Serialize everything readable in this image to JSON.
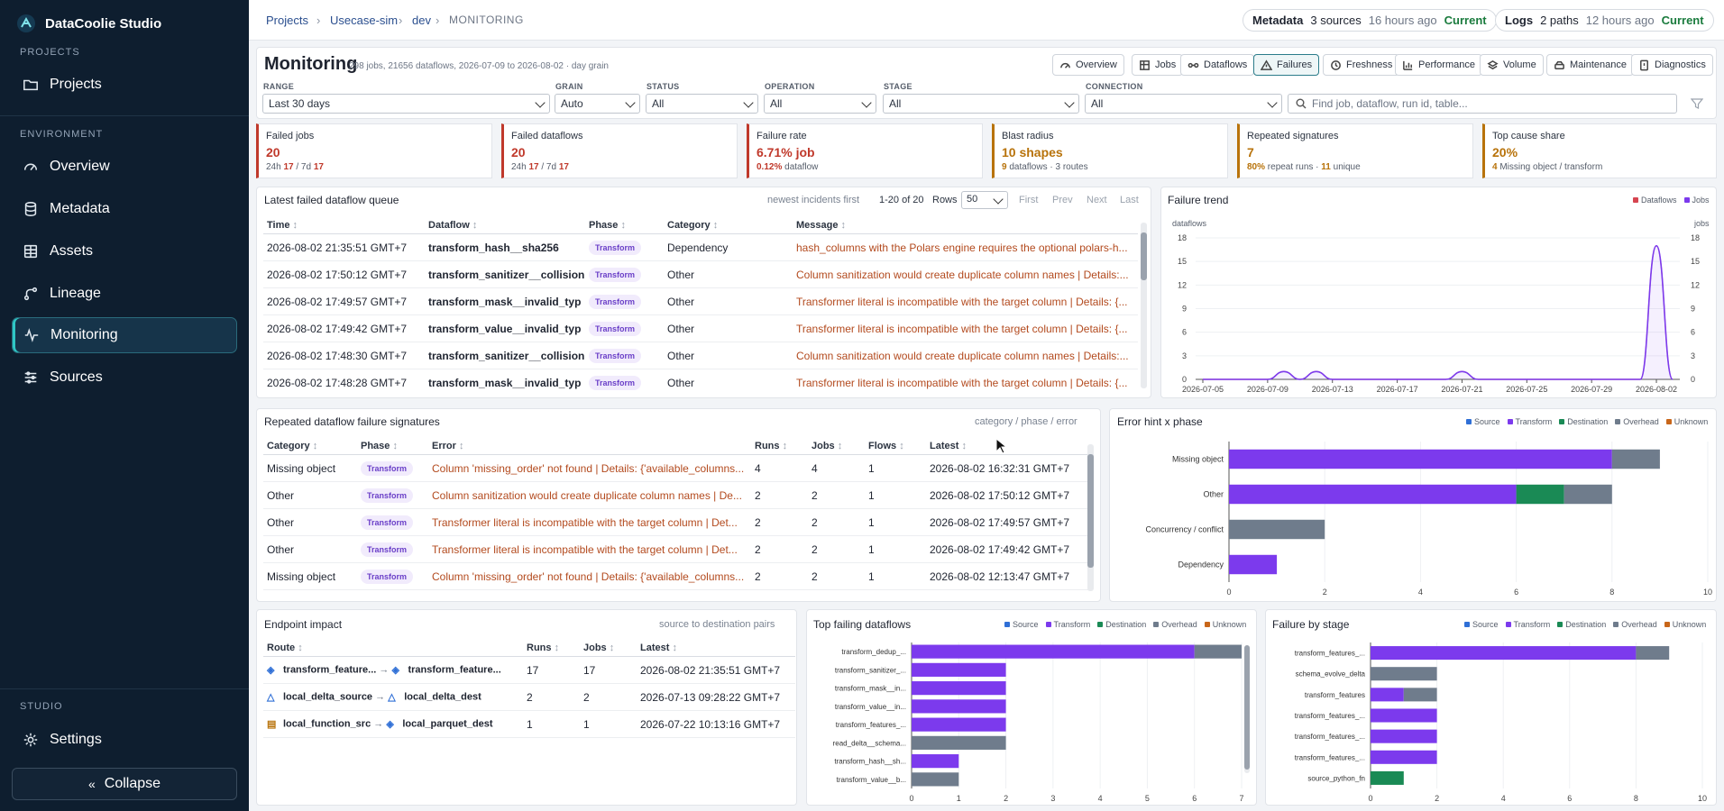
{
  "app": {
    "name": "DataCoolie Studio"
  },
  "sidebar": {
    "projects_label": "PROJECTS",
    "environment_label": "ENVIRONMENT",
    "studio_label": "STUDIO",
    "items": [
      {
        "label": "Projects"
      },
      {
        "label": "Overview"
      },
      {
        "label": "Metadata"
      },
      {
        "label": "Assets"
      },
      {
        "label": "Lineage"
      },
      {
        "label": "Monitoring"
      },
      {
        "label": "Sources"
      },
      {
        "label": "Settings"
      }
    ],
    "collapse_label": "Collapse"
  },
  "breadcrumb": {
    "projects": "Projects",
    "project": "Usecase-sim",
    "env": "dev",
    "current": "MONITORING"
  },
  "status": {
    "metadata": {
      "label": "Metadata",
      "detail": "3 sources",
      "time": "16 hours ago",
      "state": "Current"
    },
    "logs": {
      "label": "Logs",
      "detail": "2 paths",
      "time": "12 hours ago",
      "state": "Current"
    }
  },
  "header": {
    "title": "Monitoring",
    "subtitle": "298 jobs, 21656 dataflows, 2026-07-09 to 2026-08-02 · day grain"
  },
  "tabs": [
    "Overview",
    "Jobs",
    "Dataflows",
    "Failures",
    "Freshness",
    "Performance",
    "Volume",
    "Maintenance",
    "Diagnostics"
  ],
  "filters": {
    "range": {
      "label": "RANGE",
      "value": "Last 30 days"
    },
    "grain": {
      "label": "GRAIN",
      "value": "Auto"
    },
    "status": {
      "label": "STATUS",
      "value": "All"
    },
    "operation": {
      "label": "OPERATION",
      "value": "All"
    },
    "stage": {
      "label": "STAGE",
      "value": "All"
    },
    "connection": {
      "label": "CONNECTION",
      "value": "All"
    },
    "search_placeholder": "Find job, dataflow, run id, table..."
  },
  "kpis": [
    {
      "title": "Failed jobs",
      "value": "20",
      "a": "24h",
      "a_val": "17",
      "b": "/ 7d",
      "b_val": "17",
      "color": "#c0392b"
    },
    {
      "title": "Failed dataflows",
      "value": "20",
      "a": "24h",
      "a_val": "17",
      "b": "/ 7d",
      "b_val": "17",
      "color": "#c0392b"
    },
    {
      "title": "Failure rate",
      "value": "6.71% job",
      "a": "0.12%",
      "a_val": "",
      "b": "dataflow",
      "b_val": "",
      "color": "#c0392b"
    },
    {
      "title": "Blast radius",
      "value": "10 shapes",
      "a": "9",
      "a_val": "dataflows",
      "b": "· 3",
      "b_val": "routes",
      "color": "#b8730b"
    },
    {
      "title": "Repeated signatures",
      "value": "7",
      "a": "80%",
      "a_val": "repeat runs ·",
      "b": "11",
      "b_val": "unique",
      "color": "#b8730b"
    },
    {
      "title": "Top cause share",
      "value": "20%",
      "a": "4",
      "a_val": "Missing object / transform",
      "b": "",
      "b_val": "",
      "color": "#b8730b"
    }
  ],
  "queue": {
    "title": "Latest failed dataflow queue",
    "hint": "newest incidents first",
    "range": "1-20 of 20",
    "rows_label": "Rows",
    "rows_value": "50",
    "pager": [
      "First",
      "Prev",
      "Next",
      "Last"
    ],
    "columns": [
      "Time",
      "Dataflow",
      "Phase",
      "Category",
      "Message"
    ],
    "rows": [
      [
        "2026-08-02 21:35:51 GMT+7",
        "transform_hash__sha256",
        "Transform",
        "Dependency",
        "hash_columns with the Polars engine requires the optional polars-h..."
      ],
      [
        "2026-08-02 17:50:12 GMT+7",
        "transform_sanitizer__collision",
        "Transform",
        "Other",
        "Column sanitization would create duplicate column names | Details:..."
      ],
      [
        "2026-08-02 17:49:57 GMT+7",
        "transform_mask__invalid_typ",
        "Transform",
        "Other",
        "Transformer literal is incompatible with the target column | Details: {..."
      ],
      [
        "2026-08-02 17:49:42 GMT+7",
        "transform_value__invalid_typ",
        "Transform",
        "Other",
        "Transformer literal is incompatible with the target column | Details: {..."
      ],
      [
        "2026-08-02 17:48:30 GMT+7",
        "transform_sanitizer__collision",
        "Transform",
        "Other",
        "Column sanitization would create duplicate column names | Details:..."
      ],
      [
        "2026-08-02 17:48:28 GMT+7",
        "transform_mask__invalid_typ",
        "Transform",
        "Other",
        "Transformer literal is incompatible with the target column | Details: {..."
      ]
    ]
  },
  "signatures": {
    "title": "Repeated dataflow failure signatures",
    "hint": "category / phase / error",
    "columns": [
      "Category",
      "Phase",
      "Error",
      "Runs",
      "Jobs",
      "Flows",
      "Latest"
    ],
    "rows": [
      [
        "Missing object",
        "Transform",
        "Column 'missing_order' not found | Details: {'available_columns...",
        "4",
        "4",
        "1",
        "2026-08-02 16:32:31 GMT+7"
      ],
      [
        "Other",
        "Transform",
        "Column sanitization would create duplicate column names | De...",
        "2",
        "2",
        "1",
        "2026-08-02 17:50:12 GMT+7"
      ],
      [
        "Other",
        "Transform",
        "Transformer literal is incompatible with the target column | Det...",
        "2",
        "2",
        "1",
        "2026-08-02 17:49:57 GMT+7"
      ],
      [
        "Other",
        "Transform",
        "Transformer literal is incompatible with the target column | Det...",
        "2",
        "2",
        "1",
        "2026-08-02 17:49:42 GMT+7"
      ],
      [
        "Missing object",
        "Transform",
        "Column 'missing_order' not found | Details: {'available_columns...",
        "2",
        "2",
        "1",
        "2026-08-02 12:13:47 GMT+7"
      ]
    ]
  },
  "endpoint": {
    "title": "Endpoint impact",
    "hint": "source to destination pairs",
    "columns": [
      "Route",
      "Runs",
      "Jobs",
      "Latest"
    ],
    "rows": [
      [
        "transform_feature...",
        "transform_feature...",
        "17",
        "17",
        "2026-08-02 21:35:51 GMT+7"
      ],
      [
        "local_delta_source",
        "local_delta_dest",
        "2",
        "2",
        "2026-07-13 09:28:22 GMT+7"
      ],
      [
        "local_function_src",
        "local_parquet_dest",
        "1",
        "1",
        "2026-07-22 10:13:16 GMT+7"
      ]
    ]
  },
  "legend": [
    {
      "name": "Source",
      "color": "#2f6fd6"
    },
    {
      "name": "Transform",
      "color": "#7c3aed"
    },
    {
      "name": "Destination",
      "color": "#1a8a55"
    },
    {
      "name": "Overhead",
      "color": "#6f7c8c"
    },
    {
      "name": "Unknown",
      "color": "#c8661a"
    }
  ],
  "chart_data": [
    {
      "type": "line",
      "title": "Failure trend",
      "ylabel_left": "dataflows",
      "ylabel_right": "jobs",
      "legend": [
        "Dataflows",
        "Jobs"
      ],
      "legend_colors": [
        "#d64550",
        "#7c3aed"
      ],
      "x_ticks": [
        "2026-07-05",
        "2026-07-09",
        "2026-07-13",
        "2026-07-17",
        "2026-07-21",
        "2026-07-25",
        "2026-07-29",
        "2026-08-02"
      ],
      "ylim": [
        0,
        18
      ],
      "y_ticks": [
        0,
        3,
        6,
        9,
        12,
        15,
        18
      ],
      "x": [
        "2026-07-05",
        "2026-07-06",
        "2026-07-07",
        "2026-07-08",
        "2026-07-09",
        "2026-07-10",
        "2026-07-11",
        "2026-07-12",
        "2026-07-13",
        "2026-07-14",
        "2026-07-15",
        "2026-07-16",
        "2026-07-17",
        "2026-07-18",
        "2026-07-19",
        "2026-07-20",
        "2026-07-21",
        "2026-07-22",
        "2026-07-23",
        "2026-07-24",
        "2026-07-25",
        "2026-07-26",
        "2026-07-27",
        "2026-07-28",
        "2026-07-29",
        "2026-07-30",
        "2026-07-31",
        "2026-08-01",
        "2026-08-02",
        "2026-08-03"
      ],
      "series": [
        {
          "name": "Dataflows",
          "values": [
            0,
            0,
            0,
            0,
            0,
            1,
            0,
            1,
            0,
            0,
            0,
            0,
            0,
            0,
            0,
            0,
            1,
            0,
            0,
            0,
            0,
            0,
            0,
            0,
            0,
            0,
            0,
            0,
            17,
            0
          ]
        },
        {
          "name": "Jobs",
          "values": [
            0,
            0,
            0,
            0,
            0,
            1,
            0,
            1,
            0,
            0,
            0,
            0,
            0,
            0,
            0,
            0,
            1,
            0,
            0,
            0,
            0,
            0,
            0,
            0,
            0,
            0,
            0,
            0,
            17,
            0
          ]
        }
      ]
    },
    {
      "type": "bar",
      "title": "Error hint x phase",
      "orientation": "horizontal",
      "stacked": true,
      "categories": [
        "Missing object",
        "Other",
        "Concurrency / conflict",
        "Dependency"
      ],
      "xlim": [
        0,
        10
      ],
      "x_ticks": [
        0,
        2,
        4,
        6,
        8,
        10
      ],
      "series": [
        {
          "name": "Transform",
          "values": [
            8,
            6,
            0,
            1
          ]
        },
        {
          "name": "Destination",
          "values": [
            0,
            1,
            0,
            0
          ]
        },
        {
          "name": "Overhead",
          "values": [
            1,
            1,
            2,
            0
          ]
        }
      ]
    },
    {
      "type": "bar",
      "title": "Top failing dataflows",
      "orientation": "horizontal",
      "stacked": true,
      "categories": [
        "transform_dedup_...",
        "transform_sanitizer_...",
        "transform_mask__in...",
        "transform_value__in...",
        "transform_features_...",
        "read_delta__schema...",
        "transform_hash__sh...",
        "transform_value__b..."
      ],
      "xlim": [
        0,
        7
      ],
      "x_ticks": [
        0,
        1,
        2,
        3,
        4,
        5,
        6,
        7
      ],
      "series": [
        {
          "name": "Transform",
          "values": [
            6,
            2,
            2,
            2,
            2,
            0,
            1,
            0
          ]
        },
        {
          "name": "Overhead",
          "values": [
            1,
            0,
            0,
            0,
            0,
            2,
            0,
            1
          ]
        }
      ]
    },
    {
      "type": "bar",
      "title": "Failure by stage",
      "orientation": "horizontal",
      "stacked": true,
      "categories": [
        "transform_features_...",
        "schema_evolve_delta",
        "transform_features",
        "transform_features_...",
        "transform_features_...",
        "transform_features_...",
        "source_python_fn"
      ],
      "xlim": [
        0,
        10
      ],
      "x_ticks": [
        0,
        2,
        4,
        6,
        8,
        10
      ],
      "series": [
        {
          "name": "Transform",
          "values": [
            8,
            0,
            1,
            2,
            2,
            2,
            0
          ]
        },
        {
          "name": "Destination",
          "values": [
            0,
            0,
            0,
            0,
            0,
            0,
            1
          ]
        },
        {
          "name": "Overhead",
          "values": [
            1,
            2,
            1,
            0,
            0,
            0,
            0
          ]
        }
      ]
    }
  ]
}
